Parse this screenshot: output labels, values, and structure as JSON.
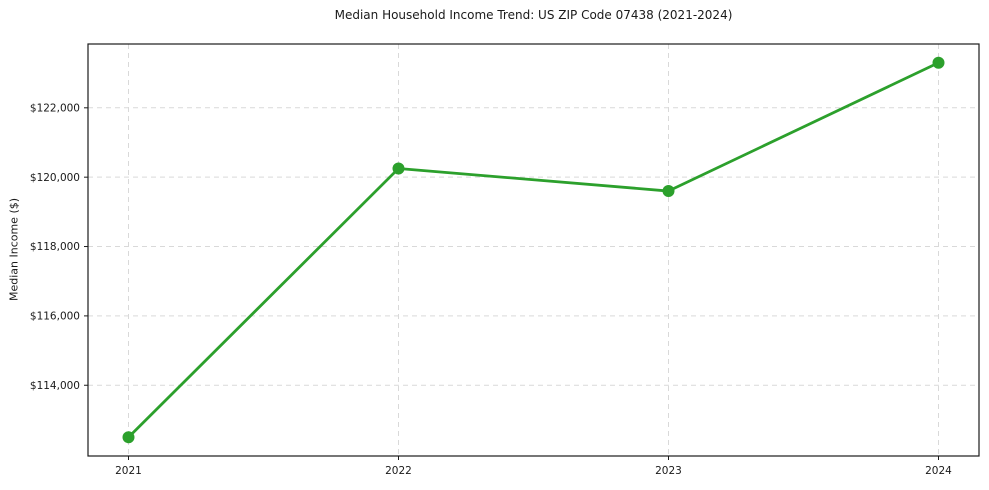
{
  "chart_data": {
    "type": "line",
    "title": "Median Household Income Trend: US ZIP Code 07438 (2021-2024)",
    "xlabel": "",
    "ylabel": "Median Income ($)",
    "x": [
      2021,
      2022,
      2023,
      2024
    ],
    "xtick_labels": [
      "2021",
      "2022",
      "2023",
      "2024"
    ],
    "series": [
      {
        "name": "Median Household Income",
        "values": [
          112500,
          120250,
          119600,
          123300
        ]
      }
    ],
    "yticks": [
      114000,
      116000,
      118000,
      120000,
      122000
    ],
    "ytick_labels": [
      "$114,000",
      "$116,000",
      "$118,000",
      "$120,000",
      "$122,000"
    ],
    "xlim": [
      2020.85,
      2024.15
    ],
    "ylim": [
      111960,
      123840
    ],
    "grid": "dashed both axes",
    "legend": "none",
    "colors": {
      "line": "#2ca02c",
      "marker": "#2ca02c",
      "grid": "#d9d9d9",
      "spine": "#1b1b1b",
      "text": "#1a1a1a",
      "background": "#ffffff"
    }
  }
}
